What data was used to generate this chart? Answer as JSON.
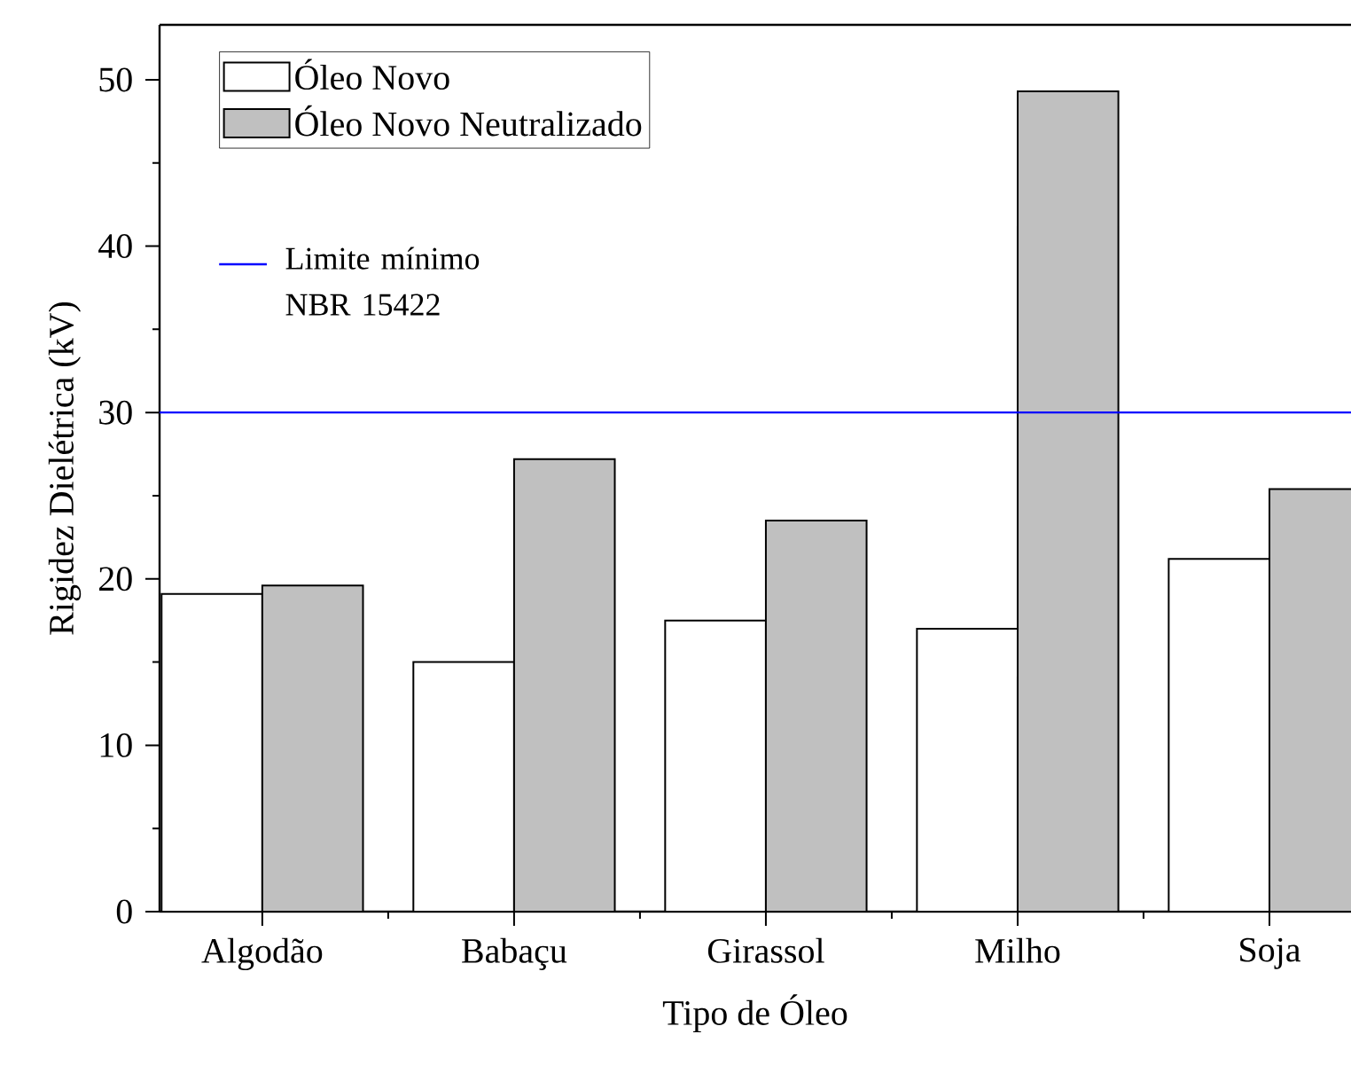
{
  "chart_data": {
    "type": "bar",
    "xlabel": "Tipo de Óleo",
    "ylabel": "Rigidez Dielétrica (kV)",
    "categories": [
      "Algodão",
      "Babaçu",
      "Girassol",
      "Milho",
      "Soja"
    ],
    "series": [
      {
        "name": "Óleo Novo",
        "color": "#ffffff",
        "values": [
          19.1,
          15.0,
          17.5,
          17.0,
          21.2
        ]
      },
      {
        "name": "Óleo Novo Neutralizado",
        "color": "#c0c0c0",
        "values": [
          19.6,
          27.2,
          23.5,
          49.3,
          25.4
        ]
      }
    ],
    "ylim": [
      0,
      53.3
    ],
    "yticks": [
      0,
      10,
      20,
      30,
      40,
      50
    ],
    "ref_lines": [
      {
        "axis": "y",
        "value": 30,
        "label": "Limite mínimo NBR 15422",
        "color": "#0000ff"
      }
    ],
    "legend": "top left",
    "grid": false
  }
}
